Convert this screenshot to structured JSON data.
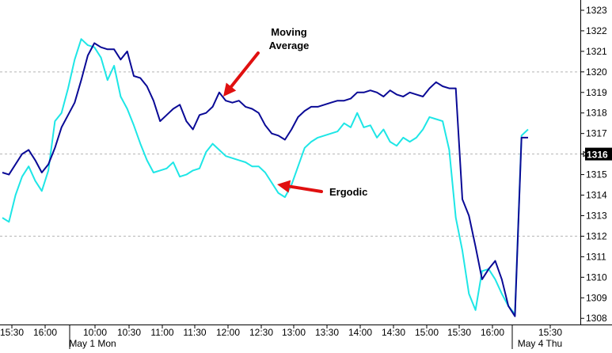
{
  "colors": {
    "background": "#ffffff",
    "moving_average": "#0a0a96",
    "ergodic": "#1ee6e6",
    "grid": "#b4b4b4",
    "axis": "#000000",
    "arrow": "#e01010",
    "marker_box": "#000000",
    "marker_text": "#ffffff"
  },
  "chart_data": {
    "type": "line",
    "title": "",
    "xlabel": "",
    "ylabel": "",
    "ylim": [
      1307.7,
      1323.5
    ],
    "y_ticks": [
      1308,
      1309,
      1310,
      1311,
      1312,
      1313,
      1314,
      1315,
      1316,
      1317,
      1318,
      1319,
      1320,
      1321,
      1322,
      1323
    ],
    "y_axis_side": "right",
    "current_value": "1316",
    "grid": "horizontal dashed lines at 1312, 1316 and 1320",
    "legend": "none",
    "x_tick_labels": [
      "15:30",
      "16:00",
      "10:00",
      "10:30",
      "11:00",
      "11:30",
      "12:00",
      "12:30",
      "13:00",
      "13:30",
      "14:00",
      "14:30",
      "15:00",
      "15:30",
      "16:00",
      "15:30"
    ],
    "date_labels": [
      "May 1 Mon",
      "May 4 Thu"
    ],
    "series": [
      {
        "key": "moving_average",
        "values": [
          1315.1,
          1315.0,
          1315.5,
          1316.0,
          1316.2,
          1315.7,
          1315.1,
          1315.5,
          1316.3,
          1317.3,
          1317.9,
          1318.5,
          1319.6,
          1320.8,
          1321.4,
          1321.2,
          1321.1,
          1321.1,
          1320.6,
          1321.0,
          1319.8,
          1319.7,
          1319.3,
          1318.6,
          1317.6,
          1317.9,
          1318.2,
          1318.4,
          1317.6,
          1317.2,
          1317.9,
          1318.0,
          1318.3,
          1319.0,
          1318.6,
          1318.5,
          1318.6,
          1318.3,
          1318.2,
          1318.0,
          1317.4,
          1317.0,
          1316.9,
          1316.7,
          1317.2,
          1317.8,
          1318.1,
          1318.3,
          1318.3,
          1318.4,
          1318.5,
          1318.6,
          1318.6,
          1318.7,
          1319.0,
          1319.0,
          1319.1,
          1319.0,
          1318.8,
          1319.1,
          1318.9,
          1318.8,
          1319.0,
          1318.9,
          1318.8,
          1319.2,
          1319.5,
          1319.3,
          1319.2,
          1319.2,
          1313.8,
          1313.0,
          1311.5,
          1309.9,
          1310.4,
          1310.8,
          1309.9,
          1308.6,
          1308.1,
          1316.8,
          1316.8
        ]
      },
      {
        "key": "ergodic",
        "values": [
          1312.9,
          1312.7,
          1314.0,
          1314.9,
          1315.4,
          1314.7,
          1314.2,
          1315.2,
          1317.6,
          1318.0,
          1319.2,
          1320.6,
          1321.6,
          1321.3,
          1321.2,
          1320.7,
          1319.6,
          1320.3,
          1318.8,
          1318.2,
          1317.4,
          1316.5,
          1315.7,
          1315.1,
          1315.2,
          1315.3,
          1315.6,
          1314.9,
          1315.0,
          1315.2,
          1315.3,
          1316.1,
          1316.5,
          1316.2,
          1315.9,
          1315.8,
          1315.7,
          1315.6,
          1315.4,
          1315.4,
          1315.1,
          1314.6,
          1314.1,
          1313.9,
          1314.5,
          1315.4,
          1316.3,
          1316.6,
          1316.8,
          1316.9,
          1317.0,
          1317.1,
          1317.5,
          1317.3,
          1318.0,
          1317.3,
          1317.4,
          1316.8,
          1317.2,
          1316.6,
          1316.4,
          1316.8,
          1316.6,
          1316.8,
          1317.2,
          1317.8,
          1317.7,
          1317.6,
          1316.2,
          1312.9,
          1311.3,
          1309.2,
          1308.4,
          1310.3,
          1310.4,
          1309.9,
          1309.2,
          1308.6,
          1308.2,
          1316.9,
          1317.2
        ]
      }
    ],
    "annotations": [
      {
        "key": "moving_average_label",
        "lines": [
          "Moving",
          "Average"
        ],
        "points_to": "moving_average"
      },
      {
        "key": "ergodic_label",
        "lines": [
          "Ergodic"
        ],
        "points_to": "ergodic"
      }
    ]
  }
}
